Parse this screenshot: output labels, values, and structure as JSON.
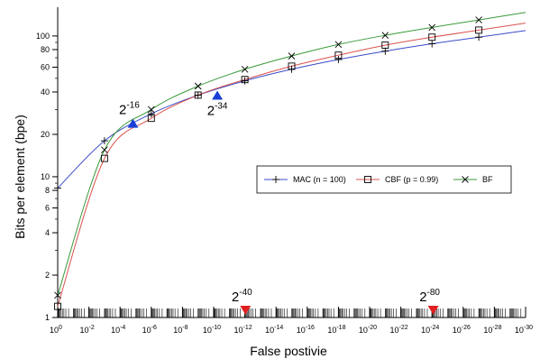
{
  "chart_data": {
    "type": "line",
    "title": "",
    "xlabel": "False postivie",
    "ylabel": "Bits per element (bpe)",
    "x_scale": "log-reversed",
    "y_scale": "log",
    "xlim": [
      1,
      1e-30
    ],
    "ylim": [
      1,
      160
    ],
    "grid": false,
    "legend_position": "middle-right",
    "x_tick_labels": [
      {
        "exp": 0,
        "base": "10",
        "sup": "0"
      },
      {
        "exp": -2,
        "base": "10",
        "sup": "-2"
      },
      {
        "exp": -4,
        "base": "10",
        "sup": "-4"
      },
      {
        "exp": -6,
        "base": "10",
        "sup": "-6"
      },
      {
        "exp": -8,
        "base": "10",
        "sup": "-8"
      },
      {
        "exp": -10,
        "base": "10",
        "sup": "-10"
      },
      {
        "exp": -12,
        "base": "10",
        "sup": "-12"
      },
      {
        "exp": -14,
        "base": "10",
        "sup": "-14"
      },
      {
        "exp": -16,
        "base": "10",
        "sup": "-16"
      },
      {
        "exp": -18,
        "base": "10",
        "sup": "-18"
      },
      {
        "exp": -20,
        "base": "10",
        "sup": "-20"
      },
      {
        "exp": -22,
        "base": "10",
        "sup": "-22"
      },
      {
        "exp": -24,
        "base": "10",
        "sup": "-24"
      },
      {
        "exp": -26,
        "base": "10",
        "sup": "-26"
      },
      {
        "exp": -28,
        "base": "10",
        "sup": "-28"
      },
      {
        "exp": -30,
        "base": "10",
        "sup": "-30"
      }
    ],
    "y_tick_labels": [
      {
        "v": 1,
        "label": "1"
      },
      {
        "v": 2,
        "label": "2"
      },
      {
        "v": 4,
        "label": "4"
      },
      {
        "v": 6,
        "label": "6"
      },
      {
        "v": 8,
        "label": "8"
      },
      {
        "v": 10,
        "label": "10"
      },
      {
        "v": 20,
        "label": "20"
      },
      {
        "v": 40,
        "label": "40"
      },
      {
        "v": 60,
        "label": "60"
      },
      {
        "v": 80,
        "label": "80"
      },
      {
        "v": 100,
        "label": "100"
      }
    ],
    "series": [
      {
        "name": "MAC (n = 100)",
        "color": "#3b4bc8",
        "marker": "plus",
        "points": [
          {
            "x": 1,
            "y": 8.3
          },
          {
            "x": 0.001,
            "y": 18
          },
          {
            "x": 1e-06,
            "y": 28
          },
          {
            "x": 1e-09,
            "y": 38
          },
          {
            "x": 1e-12,
            "y": 48
          },
          {
            "x": 1e-15,
            "y": 58
          },
          {
            "x": 1e-18,
            "y": 68
          },
          {
            "x": 1e-21,
            "y": 78
          },
          {
            "x": 1e-24,
            "y": 88
          },
          {
            "x": 1e-27,
            "y": 98
          }
        ]
      },
      {
        "name": "CBF (p = 0.99)",
        "color": "#d9534f",
        "marker": "square",
        "points": [
          {
            "x": 1,
            "y": 1.2
          },
          {
            "x": 0.001,
            "y": 13.5
          },
          {
            "x": 1e-06,
            "y": 26
          },
          {
            "x": 1e-09,
            "y": 38
          },
          {
            "x": 1e-12,
            "y": 49
          },
          {
            "x": 1e-15,
            "y": 61
          },
          {
            "x": 1e-18,
            "y": 73
          },
          {
            "x": 1e-21,
            "y": 86
          },
          {
            "x": 1e-24,
            "y": 98
          },
          {
            "x": 1e-27,
            "y": 110
          }
        ]
      },
      {
        "name": "BF",
        "color": "#3a9a3a",
        "marker": "x",
        "points": [
          {
            "x": 1,
            "y": 1.44
          },
          {
            "x": 0.001,
            "y": 15.5
          },
          {
            "x": 1e-06,
            "y": 30
          },
          {
            "x": 1e-09,
            "y": 44
          },
          {
            "x": 1e-12,
            "y": 58
          },
          {
            "x": 1e-15,
            "y": 72
          },
          {
            "x": 1e-18,
            "y": 87
          },
          {
            "x": 1e-21,
            "y": 101
          },
          {
            "x": 1e-24,
            "y": 115
          },
          {
            "x": 1e-27,
            "y": 130
          }
        ]
      }
    ],
    "annotations": [
      {
        "name": "two-pow-16",
        "base": "2",
        "sup": "-16",
        "x": 1.5e-05,
        "y": 24,
        "color": "#1a3fd6",
        "direction": "up",
        "label_side": "above"
      },
      {
        "name": "two-pow-34",
        "base": "2",
        "sup": "-34",
        "x": 5.8e-11,
        "y": 38,
        "color": "#1a3fd6",
        "direction": "up",
        "label_side": "below"
      },
      {
        "name": "two-pow-40",
        "base": "2",
        "sup": "-40",
        "x": 9.1e-13,
        "y": 1,
        "color": "#e02020",
        "direction": "down",
        "label_side": "above"
      },
      {
        "name": "two-pow-80",
        "base": "2",
        "sup": "-80",
        "x": 8.3e-25,
        "y": 1,
        "color": "#e02020",
        "direction": "down",
        "label_side": "above"
      }
    ]
  }
}
